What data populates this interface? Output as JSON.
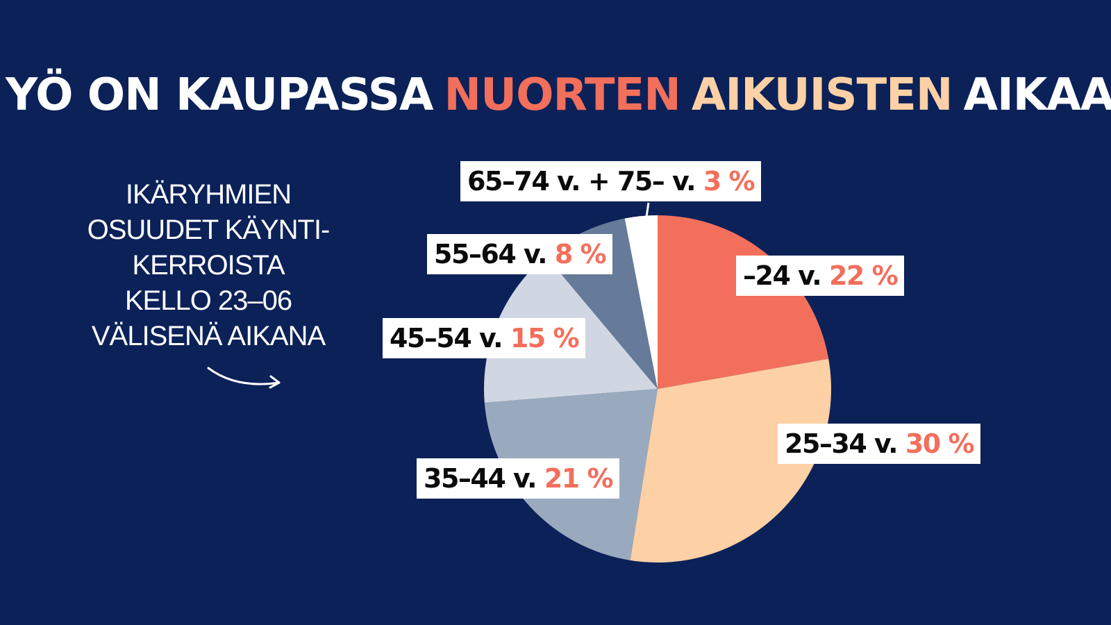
{
  "title": {
    "parts": [
      {
        "text": "YÖ ON KAUPASSA",
        "color": "#ffffff"
      },
      {
        "text": "NUORTEN",
        "color": "#f26f5c"
      },
      {
        "text": "AIKUISTEN",
        "color": "#fdd0a5"
      },
      {
        "text": "AIKAA",
        "color": "#ffffff"
      }
    ]
  },
  "subtitle": {
    "lines": [
      "IKÄRYHMIEN",
      "OSUUDET KÄYNTI-",
      "KERROISTA",
      "KELLO 23–06",
      "VÄLISENÄ AIKANA"
    ]
  },
  "colors": {
    "background": "#0b2158",
    "accent": "#f26f5c"
  },
  "chart_data": {
    "type": "pie",
    "slices": [
      {
        "label": "–24 v.",
        "value": 22,
        "value_label": "22 %",
        "color": "#f26f5c"
      },
      {
        "label": "25–34 v.",
        "value": 30,
        "value_label": "30 %",
        "color": "#fdd0a5"
      },
      {
        "label": "35–44 v.",
        "value": 21,
        "value_label": "21 %",
        "color": "#9aaabe"
      },
      {
        "label": "45–54 v.",
        "value": 15,
        "value_label": "15 %",
        "color": "#d0d7e3"
      },
      {
        "label": "55–64 v.",
        "value": 8,
        "value_label": "8 %",
        "color": "#667a9a"
      },
      {
        "label": "65–74 v. + 75– v.",
        "value": 3,
        "value_label": "3 %",
        "color": "#ffffff"
      }
    ]
  }
}
